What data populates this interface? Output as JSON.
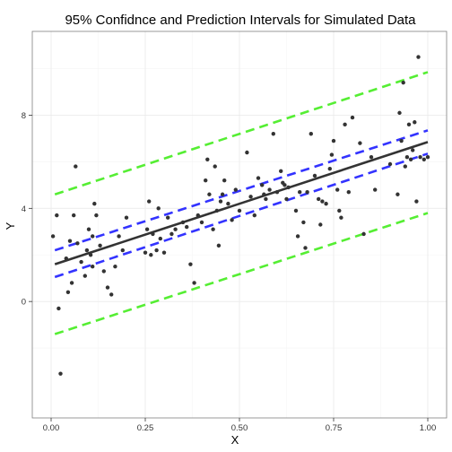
{
  "chart_data": {
    "type": "scatter",
    "title": "95% Confidnce and Prediction Intervals for Simulated Data",
    "xlabel": "X",
    "ylabel": "Y",
    "xlim": [
      -0.05,
      1.05
    ],
    "ylim": [
      -5.0,
      11.6
    ],
    "x_ticks": [
      0.0,
      0.25,
      0.5,
      0.75,
      1.0
    ],
    "x_tick_labels": [
      "0.00",
      "0.25",
      "0.50",
      "0.75",
      "1.00"
    ],
    "y_ticks": [
      0,
      4,
      8
    ],
    "y_tick_labels": [
      "0",
      "4",
      "8"
    ],
    "grid": true,
    "colors": {
      "points": "#333333",
      "fit": "#333333",
      "confidence": "#3333ff",
      "prediction": "#55ee33",
      "panel_border": "#7f7f7f",
      "grid": "#ebebeb"
    },
    "lines": {
      "fit": {
        "x": [
          0.01,
          1.0
        ],
        "y": [
          1.6,
          6.85
        ]
      },
      "confidence_upper": {
        "x": [
          0.01,
          1.0
        ],
        "y": [
          2.2,
          7.35
        ]
      },
      "confidence_lower": {
        "x": [
          0.01,
          1.0
        ],
        "y": [
          1.05,
          6.35
        ]
      },
      "prediction_upper": {
        "x": [
          0.01,
          1.0
        ],
        "y": [
          4.6,
          9.85
        ]
      },
      "prediction_lower": {
        "x": [
          0.01,
          1.0
        ],
        "y": [
          -1.4,
          3.8
        ]
      }
    },
    "points": [
      {
        "x": 0.005,
        "y": 2.8
      },
      {
        "x": 0.015,
        "y": 3.7
      },
      {
        "x": 0.02,
        "y": -0.3
      },
      {
        "x": 0.025,
        "y": -3.1
      },
      {
        "x": 0.04,
        "y": 1.85
      },
      {
        "x": 0.045,
        "y": 0.4
      },
      {
        "x": 0.05,
        "y": 2.6
      },
      {
        "x": 0.055,
        "y": 0.8
      },
      {
        "x": 0.06,
        "y": 3.7
      },
      {
        "x": 0.065,
        "y": 5.8
      },
      {
        "x": 0.07,
        "y": 2.5
      },
      {
        "x": 0.08,
        "y": 1.7
      },
      {
        "x": 0.09,
        "y": 1.1
      },
      {
        "x": 0.095,
        "y": 2.2
      },
      {
        "x": 0.1,
        "y": 3.1
      },
      {
        "x": 0.105,
        "y": 2.0
      },
      {
        "x": 0.11,
        "y": 1.5
      },
      {
        "x": 0.11,
        "y": 2.8
      },
      {
        "x": 0.115,
        "y": 4.2
      },
      {
        "x": 0.12,
        "y": 3.7
      },
      {
        "x": 0.13,
        "y": 2.4
      },
      {
        "x": 0.14,
        "y": 1.3
      },
      {
        "x": 0.15,
        "y": 0.6
      },
      {
        "x": 0.16,
        "y": 0.3
      },
      {
        "x": 0.17,
        "y": 1.5
      },
      {
        "x": 0.18,
        "y": 2.8
      },
      {
        "x": 0.19,
        "y": 2.2
      },
      {
        "x": 0.2,
        "y": 3.6
      },
      {
        "x": 0.25,
        "y": 2.1
      },
      {
        "x": 0.255,
        "y": 3.1
      },
      {
        "x": 0.26,
        "y": 4.3
      },
      {
        "x": 0.265,
        "y": 2.0
      },
      {
        "x": 0.27,
        "y": 2.9
      },
      {
        "x": 0.28,
        "y": 2.2
      },
      {
        "x": 0.285,
        "y": 4.0
      },
      {
        "x": 0.29,
        "y": 2.7
      },
      {
        "x": 0.3,
        "y": 2.1
      },
      {
        "x": 0.31,
        "y": 3.6
      },
      {
        "x": 0.32,
        "y": 2.9
      },
      {
        "x": 0.33,
        "y": 3.1
      },
      {
        "x": 0.35,
        "y": 3.4
      },
      {
        "x": 0.36,
        "y": 3.2
      },
      {
        "x": 0.37,
        "y": 1.6
      },
      {
        "x": 0.38,
        "y": 0.8
      },
      {
        "x": 0.39,
        "y": 3.7
      },
      {
        "x": 0.4,
        "y": 3.4
      },
      {
        "x": 0.41,
        "y": 5.2
      },
      {
        "x": 0.415,
        "y": 6.1
      },
      {
        "x": 0.42,
        "y": 4.6
      },
      {
        "x": 0.43,
        "y": 3.1
      },
      {
        "x": 0.435,
        "y": 5.8
      },
      {
        "x": 0.44,
        "y": 3.9
      },
      {
        "x": 0.445,
        "y": 2.4
      },
      {
        "x": 0.45,
        "y": 4.3
      },
      {
        "x": 0.455,
        "y": 4.6
      },
      {
        "x": 0.46,
        "y": 5.2
      },
      {
        "x": 0.47,
        "y": 4.2
      },
      {
        "x": 0.48,
        "y": 3.5
      },
      {
        "x": 0.49,
        "y": 4.8
      },
      {
        "x": 0.5,
        "y": 3.9
      },
      {
        "x": 0.52,
        "y": 6.4
      },
      {
        "x": 0.53,
        "y": 4.5
      },
      {
        "x": 0.54,
        "y": 3.7
      },
      {
        "x": 0.55,
        "y": 5.3
      },
      {
        "x": 0.56,
        "y": 5.0
      },
      {
        "x": 0.565,
        "y": 4.6
      },
      {
        "x": 0.57,
        "y": 4.4
      },
      {
        "x": 0.58,
        "y": 4.8
      },
      {
        "x": 0.59,
        "y": 7.2
      },
      {
        "x": 0.6,
        "y": 4.7
      },
      {
        "x": 0.61,
        "y": 5.6
      },
      {
        "x": 0.615,
        "y": 5.1
      },
      {
        "x": 0.62,
        "y": 5.0
      },
      {
        "x": 0.625,
        "y": 4.4
      },
      {
        "x": 0.63,
        "y": 4.9
      },
      {
        "x": 0.65,
        "y": 3.9
      },
      {
        "x": 0.655,
        "y": 2.8
      },
      {
        "x": 0.66,
        "y": 4.7
      },
      {
        "x": 0.67,
        "y": 3.4
      },
      {
        "x": 0.675,
        "y": 2.3
      },
      {
        "x": 0.68,
        "y": 4.7
      },
      {
        "x": 0.69,
        "y": 7.2
      },
      {
        "x": 0.7,
        "y": 5.4
      },
      {
        "x": 0.71,
        "y": 4.4
      },
      {
        "x": 0.715,
        "y": 3.3
      },
      {
        "x": 0.72,
        "y": 4.3
      },
      {
        "x": 0.73,
        "y": 4.2
      },
      {
        "x": 0.74,
        "y": 5.7
      },
      {
        "x": 0.745,
        "y": 6.3
      },
      {
        "x": 0.75,
        "y": 6.9
      },
      {
        "x": 0.76,
        "y": 4.8
      },
      {
        "x": 0.765,
        "y": 3.9
      },
      {
        "x": 0.77,
        "y": 3.6
      },
      {
        "x": 0.78,
        "y": 7.6
      },
      {
        "x": 0.79,
        "y": 4.7
      },
      {
        "x": 0.8,
        "y": 7.9
      },
      {
        "x": 0.82,
        "y": 6.8
      },
      {
        "x": 0.83,
        "y": 2.9
      },
      {
        "x": 0.85,
        "y": 6.2
      },
      {
        "x": 0.86,
        "y": 4.8
      },
      {
        "x": 0.9,
        "y": 5.9
      },
      {
        "x": 0.92,
        "y": 4.6
      },
      {
        "x": 0.925,
        "y": 8.1
      },
      {
        "x": 0.93,
        "y": 6.9
      },
      {
        "x": 0.935,
        "y": 9.4
      },
      {
        "x": 0.94,
        "y": 5.8
      },
      {
        "x": 0.945,
        "y": 6.2
      },
      {
        "x": 0.95,
        "y": 7.6
      },
      {
        "x": 0.955,
        "y": 6.1
      },
      {
        "x": 0.96,
        "y": 6.5
      },
      {
        "x": 0.965,
        "y": 7.7
      },
      {
        "x": 0.97,
        "y": 4.3
      },
      {
        "x": 0.975,
        "y": 10.5
      },
      {
        "x": 0.98,
        "y": 6.2
      },
      {
        "x": 0.99,
        "y": 6.1
      },
      {
        "x": 1.0,
        "y": 6.2
      }
    ]
  }
}
